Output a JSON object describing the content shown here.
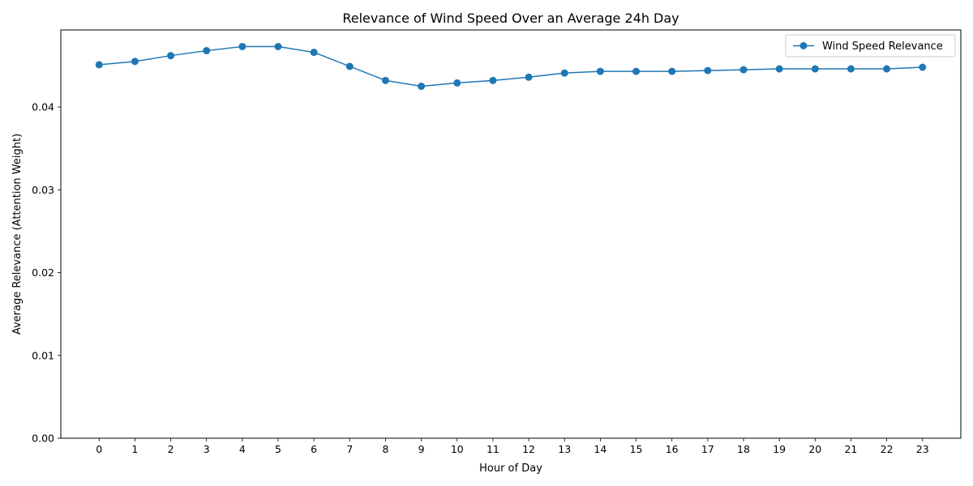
{
  "chart_data": {
    "type": "line",
    "title": "Relevance of Wind Speed Over an Average 24h Day",
    "xlabel": "Hour of Day",
    "ylabel": "Average Relevance (Attention Weight)",
    "x": [
      0,
      1,
      2,
      3,
      4,
      5,
      6,
      7,
      8,
      9,
      10,
      11,
      12,
      13,
      14,
      15,
      16,
      17,
      18,
      19,
      20,
      21,
      22,
      23
    ],
    "xlim": [
      -1.07,
      24.07
    ],
    "ylim": [
      0,
      0.0493
    ],
    "yticks": [
      0.0,
      0.01,
      0.02,
      0.03,
      0.04
    ],
    "ytick_labels": [
      "0.00",
      "0.01",
      "0.02",
      "0.03",
      "0.04"
    ],
    "series": [
      {
        "name": "Wind Speed Relevance",
        "color": "#1f77b4",
        "marker": "circle",
        "values": [
          0.0451,
          0.0455,
          0.0462,
          0.0468,
          0.0473,
          0.0473,
          0.0466,
          0.0449,
          0.0432,
          0.0425,
          0.0429,
          0.0432,
          0.0436,
          0.0441,
          0.0443,
          0.0443,
          0.0443,
          0.0444,
          0.0445,
          0.0446,
          0.0446,
          0.0446,
          0.0446,
          0.0448
        ]
      }
    ],
    "legend_position": "top-right",
    "grid": false
  }
}
